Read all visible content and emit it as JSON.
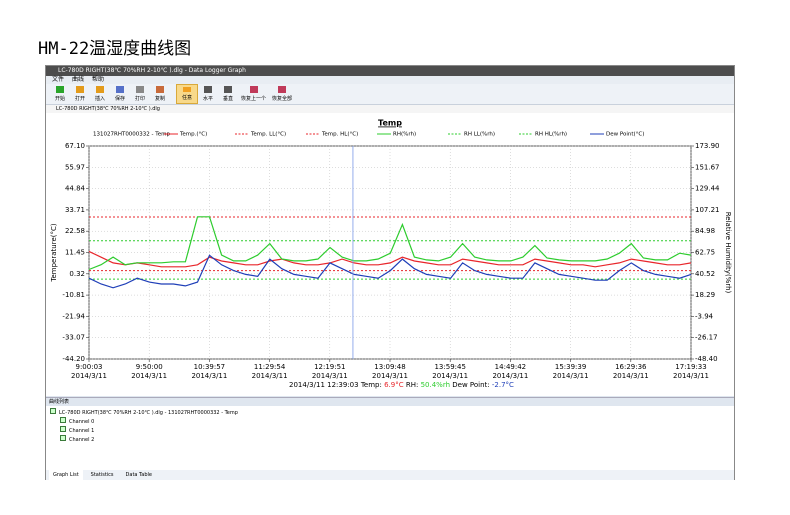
{
  "heading": "HM-22温湿度曲线图",
  "window": {
    "title": "LC-780D RIGHT(38℃ 70%RH 2-10℃ ).dlg - Data Logger Graph",
    "menu": [
      "文件",
      "曲线",
      "帮助"
    ],
    "toolbar": [
      "开始",
      "打开",
      "插入",
      "保存",
      "打印",
      "复制",
      "任意",
      "水平",
      "垂直",
      "恢复上一个",
      "恢复全部"
    ],
    "tab": "LC-780D RIGHT(38℃ 70%RH 2-10℃ ).dlg"
  },
  "chart_data": {
    "type": "line",
    "title": "Temp",
    "legend_title": "131027RHT0000332 - Temp",
    "y_label": "Temperature(°C)",
    "y2_label": "Relative Humidity(%rh)",
    "x": [
      "9:00:03",
      "9:10:03",
      "9:20:03",
      "9:30:03",
      "9:40:03",
      "9:50:03",
      "10:00:03",
      "10:10:03",
      "10:20:03",
      "10:30:03",
      "10:40:03",
      "10:50:03",
      "11:00:03",
      "11:10:03",
      "11:20:03",
      "11:30:03",
      "11:40:03",
      "11:50:03",
      "12:00:03",
      "12:10:03",
      "12:20:03",
      "12:30:03",
      "12:40:03",
      "12:50:03",
      "13:00:03",
      "13:10:03",
      "13:20:03",
      "13:30:03",
      "13:40:03",
      "13:50:03",
      "14:00:03",
      "14:10:03",
      "14:20:03",
      "14:30:03",
      "14:40:03",
      "14:50:03",
      "15:00:03",
      "15:10:03",
      "15:20:03",
      "15:30:03",
      "15:40:03",
      "15:50:03",
      "16:00:03",
      "16:10:03",
      "16:20:03",
      "16:30:03",
      "16:40:03",
      "16:50:03",
      "17:00:03",
      "17:10:03",
      "17:19:33"
    ],
    "xlim": [
      "9:00:03",
      "17:19:33"
    ],
    "xticks": [
      "9:00:03",
      "9:50:00",
      "10:39:57",
      "11:29:54",
      "12:19:51",
      "13:09:48",
      "13:59:45",
      "14:49:42",
      "15:39:39",
      "16:29:36",
      "17:19:33"
    ],
    "xtick_date": "2014/3/11",
    "ylim": [
      -44.2,
      67.1
    ],
    "yticks": [
      {
        "value": 67.1,
        "label": "67.10"
      },
      55.97,
      44.84,
      33.71,
      22.58,
      11.45,
      0.32,
      -10.81,
      -21.94,
      -33.07,
      {
        "value": -44.2,
        "label": "-44.20"
      }
    ],
    "y2lim": [
      -48.4,
      173.9
    ],
    "y2ticks": [
      {
        "value": 173.9,
        "label": "173.90"
      },
      151.67,
      129.44,
      107.21,
      84.98,
      62.75,
      40.52,
      18.29,
      -3.94,
      -26.17,
      {
        "value": -48.4,
        "label": "-48.40"
      }
    ],
    "grid": true,
    "series": [
      {
        "name": "Temp.(°C)",
        "color": "#e8262b",
        "values": [
          12,
          9,
          6,
          5,
          6,
          5,
          4,
          4,
          4,
          5,
          9,
          7,
          6,
          5,
          5,
          7,
          8,
          6,
          5,
          5,
          6,
          8,
          6,
          5,
          5,
          6,
          9,
          7,
          6,
          5,
          5,
          8,
          7,
          6,
          5,
          5,
          5,
          8,
          7,
          6,
          5,
          5,
          4,
          5,
          6,
          8,
          7,
          6,
          5,
          5,
          6
        ]
      },
      {
        "name": "Temp. LL(°C)",
        "color": "#e8262b",
        "dashed": true,
        "level": 2
      },
      {
        "name": "Temp. HL(°C)",
        "color": "#e8262b",
        "dashed": true,
        "level": 30
      },
      {
        "name": "RH(%rh)",
        "color": "#2ecc2e",
        "axis": "y2",
        "values": [
          45,
          50,
          58,
          50,
          52,
          52,
          52,
          53,
          53,
          100,
          100,
          60,
          54,
          54,
          60,
          72,
          56,
          54,
          54,
          56,
          68,
          58,
          54,
          54,
          56,
          62,
          92,
          58,
          55,
          54,
          58,
          72,
          58,
          55,
          54,
          54,
          58,
          70,
          57,
          55,
          54,
          54,
          54,
          56,
          62,
          72,
          57,
          55,
          55,
          62,
          60
        ]
      },
      {
        "name": "RH LL(%rh)",
        "color": "#2ecc2e",
        "dashed": true,
        "axis": "y2",
        "level": 35
      },
      {
        "name": "RH HL(%rh)",
        "color": "#2ecc2e",
        "dashed": true,
        "axis": "y2",
        "level": 75
      },
      {
        "name": "Dew Point(°C)",
        "color": "#1f3fb8",
        "values": [
          -2,
          -5,
          -7,
          -5,
          -2,
          -4,
          -5,
          -5,
          -6,
          -4,
          10,
          5,
          2,
          0,
          -1,
          8,
          3,
          0,
          -1,
          -2,
          6,
          3,
          0,
          -1,
          -2,
          2,
          8,
          3,
          0,
          -1,
          -2,
          6,
          2,
          0,
          -1,
          -2,
          -2,
          6,
          3,
          0,
          -1,
          -2,
          -3,
          -3,
          2,
          6,
          2,
          0,
          -1,
          -2,
          0
        ]
      }
    ],
    "cursor": {
      "time": "12:39:03",
      "date": "2014/3/11",
      "readout": [
        {
          "label": "Temp:",
          "value": "6.9°C",
          "color": "#e8262b"
        },
        {
          "label": "RH:",
          "value": "50.4%rh",
          "color": "#2ecc2e"
        },
        {
          "label": "Dew Point:",
          "value": "-2.7°C",
          "color": "#1f3fb8"
        }
      ]
    }
  },
  "graph_list": {
    "title": "曲线列表",
    "root": "LC-780D RIGHT(38℃ 70%RH 2-10℃ ).dlg - 131027RHT0000332 - Temp",
    "channels": [
      "Channel 0",
      "Channel 1",
      "Channel 2"
    ],
    "tabs": [
      "Graph List",
      "Statistics",
      "Data Table"
    ]
  }
}
